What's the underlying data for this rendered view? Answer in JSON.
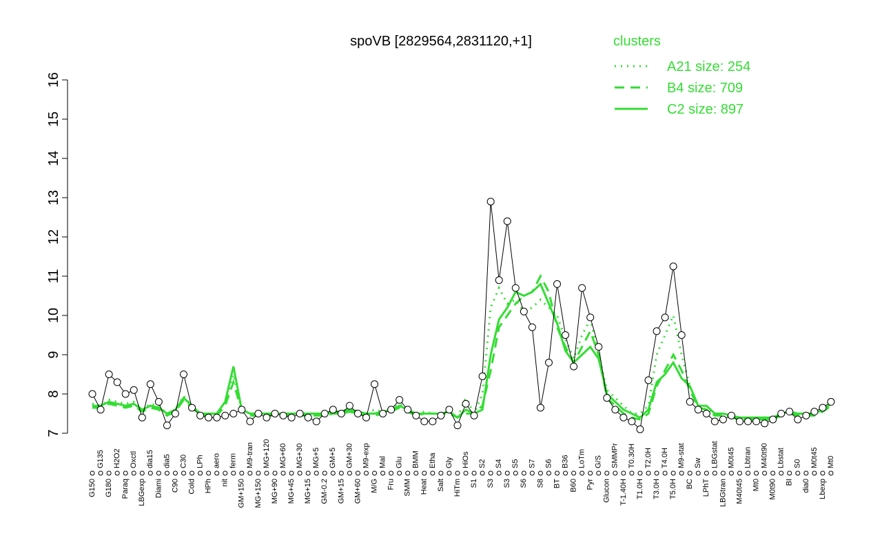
{
  "chart_data": {
    "type": "line",
    "title": "spoVB [2829564,2831120,+1]",
    "legend_title": "clusters",
    "legend_position": "top-right",
    "color": "#000000",
    "categories": [
      "G150",
      "G135",
      "G180",
      "H2O2",
      "Paraq",
      "Oxctl",
      "LBGexp",
      "dia15",
      "Diami",
      "dia5",
      "C90",
      "C30",
      "Cold",
      "LPh",
      "HPh",
      "aero",
      "nit",
      "ferm",
      "GM+150",
      "M9-tran",
      "MG+150",
      "MG+120",
      "MG+90",
      "MG+60",
      "MG+45",
      "MG+30",
      "MG+15",
      "MG+5",
      "GM-0.2",
      "GM+5",
      "GM+15",
      "GM+30",
      "GM+60",
      "M9-exp",
      "M/G",
      "Mal",
      "Fru",
      "Glu",
      "SMM",
      "BMM",
      "Heat",
      "Etha",
      "Salt",
      "Gly",
      "HiTm",
      "HiOs",
      "S1",
      "S2",
      "S3",
      "S4",
      "S3",
      "S5",
      "S6",
      "S7",
      "S8",
      "S6",
      "BT",
      "B36",
      "B60",
      "LoTm",
      "Pyr",
      "G/S",
      "Glucon",
      "SMMPr",
      "T-1.40H",
      "T0.30H",
      "T1.0H",
      "T2.0H",
      "T3.0H",
      "T4.0H",
      "T5.0H",
      "M9-stat",
      "BC",
      "Sw",
      "LPhT",
      "LBGstat",
      "LBGtran",
      "M0t45",
      "M40t45",
      "Lbtran",
      "Mt0",
      "M40t90",
      "M0t90",
      "Lbstat",
      "BI",
      "S0",
      "dia0",
      "M0t45",
      "Lbexp",
      "Mt0"
    ],
    "values": [
      8.0,
      7.6,
      8.5,
      8.3,
      8.0,
      8.1,
      7.4,
      8.25,
      7.8,
      7.2,
      7.5,
      8.5,
      7.65,
      7.45,
      7.4,
      7.4,
      7.45,
      7.5,
      7.6,
      7.3,
      7.5,
      7.4,
      7.5,
      7.45,
      7.4,
      7.5,
      7.4,
      7.3,
      7.5,
      7.6,
      7.5,
      7.7,
      7.5,
      7.4,
      8.25,
      7.5,
      7.6,
      7.85,
      7.6,
      7.45,
      7.3,
      7.3,
      7.45,
      7.6,
      7.2,
      7.75,
      7.45,
      8.45,
      12.9,
      10.9,
      12.4,
      10.7,
      10.1,
      9.7,
      7.65,
      8.8,
      10.8,
      9.5,
      8.7,
      10.7,
      9.95,
      9.2,
      7.9,
      7.6,
      7.4,
      7.3,
      7.1,
      8.35,
      9.6,
      9.95,
      11.25,
      9.5,
      7.8,
      7.6,
      7.5,
      7.3,
      7.35,
      7.45,
      7.3,
      7.3,
      7.3,
      7.25,
      7.35,
      7.5,
      7.55,
      7.35,
      7.45,
      7.55,
      7.65,
      7.8
    ],
    "series": [
      {
        "name": "A21 size: 254",
        "color": "#33dd33",
        "dash": "dotted",
        "values": [
          7.75,
          7.7,
          7.85,
          7.8,
          7.75,
          7.8,
          7.6,
          7.75,
          7.7,
          7.5,
          7.6,
          7.95,
          7.7,
          7.5,
          7.5,
          7.5,
          7.8,
          8.5,
          7.6,
          7.5,
          7.5,
          7.5,
          7.5,
          7.5,
          7.5,
          7.5,
          7.5,
          7.5,
          7.5,
          7.55,
          7.55,
          7.65,
          7.55,
          7.5,
          7.6,
          7.55,
          7.6,
          7.75,
          7.6,
          7.5,
          7.55,
          7.5,
          7.5,
          7.55,
          7.4,
          7.9,
          7.5,
          8.0,
          10.2,
          10.7,
          10.3,
          10.4,
          10.1,
          10.2,
          10.4,
          10.2,
          10.0,
          9.4,
          8.9,
          9.5,
          9.9,
          9.0,
          8.1,
          7.9,
          7.7,
          7.5,
          7.5,
          7.7,
          9.0,
          9.5,
          10.0,
          9.0,
          8.2,
          7.7,
          7.6,
          7.5,
          7.5,
          7.4,
          7.4,
          7.4,
          7.4,
          7.4,
          7.4,
          7.5,
          7.55,
          7.5,
          7.5,
          7.5,
          7.6,
          7.75
        ]
      },
      {
        "name": "B4 size: 709",
        "color": "#33dd33",
        "dash": "dashed",
        "values": [
          7.65,
          7.65,
          7.75,
          7.7,
          7.65,
          7.7,
          7.55,
          7.65,
          7.6,
          7.45,
          7.55,
          7.85,
          7.65,
          7.45,
          7.45,
          7.45,
          7.7,
          8.3,
          7.55,
          7.45,
          7.45,
          7.45,
          7.45,
          7.45,
          7.45,
          7.45,
          7.45,
          7.45,
          7.45,
          7.5,
          7.5,
          7.55,
          7.5,
          7.45,
          7.45,
          7.5,
          7.55,
          7.65,
          7.55,
          7.45,
          7.5,
          7.5,
          7.5,
          7.5,
          7.4,
          7.5,
          7.5,
          7.7,
          8.6,
          9.7,
          10.0,
          10.3,
          10.5,
          10.6,
          11.0,
          10.6,
          9.7,
          9.2,
          8.8,
          9.2,
          9.6,
          9.0,
          7.9,
          7.7,
          7.5,
          7.4,
          7.35,
          7.5,
          8.2,
          8.6,
          9.0,
          8.6,
          8.1,
          7.65,
          7.6,
          7.45,
          7.45,
          7.4,
          7.35,
          7.35,
          7.35,
          7.35,
          7.35,
          7.45,
          7.5,
          7.45,
          7.45,
          7.45,
          7.55,
          7.7
        ]
      },
      {
        "name": "C2 size: 897",
        "color": "#33dd33",
        "dash": "solid",
        "values": [
          7.7,
          7.7,
          7.8,
          7.75,
          7.7,
          7.75,
          7.6,
          7.7,
          7.65,
          7.5,
          7.6,
          7.9,
          7.7,
          7.5,
          7.5,
          7.5,
          7.8,
          8.7,
          7.6,
          7.5,
          7.5,
          7.5,
          7.5,
          7.5,
          7.5,
          7.5,
          7.5,
          7.5,
          7.5,
          7.55,
          7.55,
          7.6,
          7.55,
          7.5,
          7.5,
          7.55,
          7.6,
          7.7,
          7.6,
          7.5,
          7.5,
          7.5,
          7.5,
          7.55,
          7.4,
          7.6,
          7.5,
          7.6,
          9.0,
          9.9,
          10.2,
          10.6,
          10.5,
          10.6,
          10.8,
          10.3,
          9.8,
          9.1,
          8.8,
          9.0,
          9.2,
          8.9,
          8.0,
          7.8,
          7.6,
          7.5,
          7.4,
          7.6,
          8.3,
          8.5,
          8.8,
          8.4,
          8.2,
          7.7,
          7.7,
          7.5,
          7.5,
          7.45,
          7.4,
          7.4,
          7.4,
          7.4,
          7.4,
          7.5,
          7.55,
          7.5,
          7.5,
          7.5,
          7.6,
          7.75
        ]
      }
    ],
    "ylim": [
      7,
      16
    ],
    "yticks": [
      7,
      8,
      9,
      10,
      11,
      12,
      13,
      14,
      15,
      16
    ]
  }
}
